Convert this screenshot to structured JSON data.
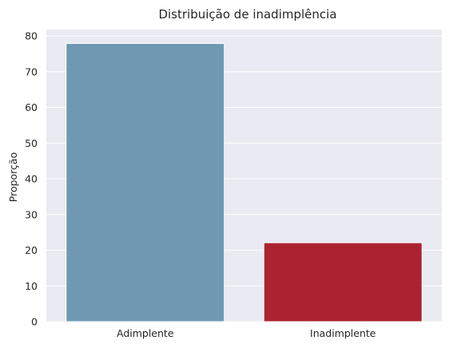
{
  "chart_data": {
    "type": "bar",
    "title": "Distribuição de inadimplência",
    "xlabel": "",
    "ylabel": "Proporção",
    "categories": [
      "Adimplente",
      "Inadimplente"
    ],
    "values": [
      77.9,
      22.1
    ],
    "bar_colors": [
      "#6f99b3",
      "#ac2330"
    ],
    "ylim": [
      0,
      81.8
    ],
    "yticks": [
      0,
      10,
      20,
      30,
      40,
      50,
      60,
      70,
      80
    ],
    "grid": true,
    "legend": "none",
    "colors": {
      "plot_background": "#eaeaf2",
      "grid": "#ffffff",
      "text": "#262626"
    }
  }
}
